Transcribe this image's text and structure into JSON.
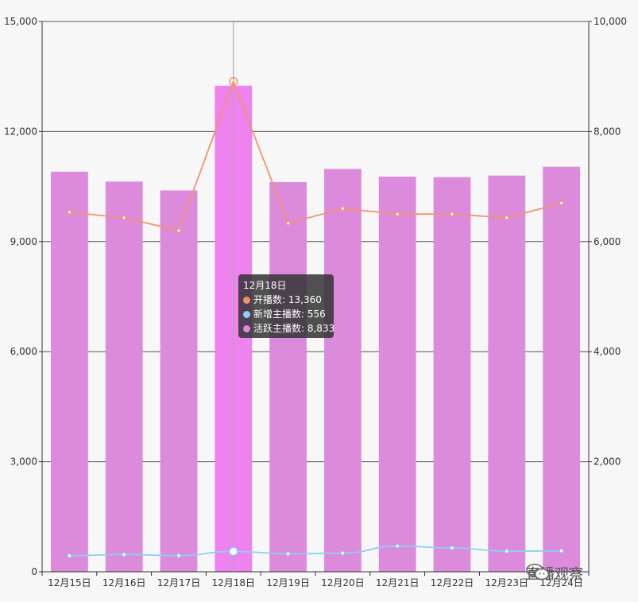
{
  "chart_data": {
    "type": "bar",
    "categories": [
      "12月15日",
      "12月16日",
      "12月17日",
      "12月18日",
      "12月19日",
      "12月20日",
      "12月21日",
      "12月22日",
      "12月23日",
      "12月24日"
    ],
    "series": [
      {
        "name": "开播数",
        "type": "line",
        "axis": "left",
        "color": "#f0936e",
        "values": [
          9800,
          9650,
          9300,
          13360,
          9500,
          9900,
          9750,
          9750,
          9650,
          10050
        ]
      },
      {
        "name": "新增主播数",
        "type": "line",
        "axis": "left",
        "color": "#8fcdf2",
        "values": [
          440,
          470,
          440,
          556,
          490,
          510,
          700,
          650,
          560,
          570
        ]
      },
      {
        "name": "活跃主播数",
        "type": "bar",
        "axis": "right",
        "color": "#dc8bdc",
        "values": [
          7270,
          7090,
          6930,
          8833,
          7080,
          7320,
          7180,
          7170,
          7200,
          7360
        ]
      }
    ],
    "y_left": {
      "min": 0,
      "max": 15000,
      "ticks": [
        "0",
        "3,000",
        "6,000",
        "9,000",
        "12,000",
        "15,000"
      ]
    },
    "y_right": {
      "min": 0,
      "max": 10000,
      "ticks": [
        "2,000",
        "4,000",
        "6,000",
        "8,000",
        "10,000"
      ]
    },
    "highlight_index": 3,
    "highlight_bar_color": "#ee82ee",
    "grid": true,
    "tooltip": {
      "title": "12月18日",
      "rows": [
        {
          "label": "开播数: 13,360",
          "color": "#f0936e"
        },
        {
          "label": "新增主播数: 556",
          "color": "#8fcdf2"
        },
        {
          "label": "活跃主播数: 8,833",
          "color": "#dc8bdc"
        }
      ]
    }
  },
  "watermark": {
    "text": "直播观察",
    "icon": "wechat-icon"
  }
}
